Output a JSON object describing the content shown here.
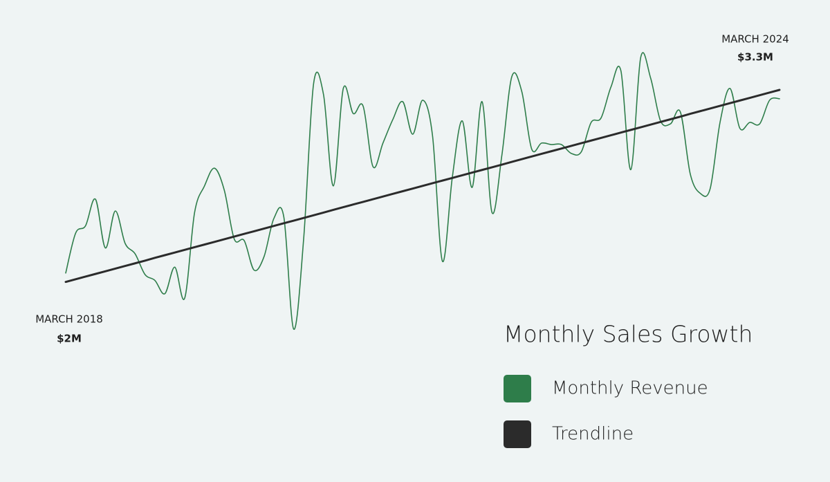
{
  "chart_data": {
    "type": "line",
    "title": "Monthly Sales Growth",
    "categories": [
      "MARCH 2018",
      null,
      null,
      null,
      null,
      null,
      null,
      null,
      null,
      null,
      null,
      null,
      null,
      null,
      null,
      null,
      null,
      null,
      null,
      null,
      null,
      null,
      null,
      null,
      null,
      null,
      null,
      null,
      null,
      null,
      null,
      null,
      null,
      null,
      null,
      null,
      null,
      null,
      null,
      null,
      null,
      null,
      null,
      null,
      null,
      null,
      null,
      null,
      null,
      null,
      null,
      null,
      null,
      null,
      null,
      null,
      null,
      null,
      null,
      null,
      null,
      null,
      null,
      null,
      null,
      null,
      null,
      null,
      null,
      null,
      null,
      null,
      "MARCH 2024"
    ],
    "series": [
      {
        "name": "Monthly Revenue",
        "color": "#2e7d4a",
        "values": [
          2.06,
          2.33,
          2.38,
          2.56,
          2.23,
          2.48,
          2.26,
          2.19,
          2.05,
          2.01,
          1.92,
          2.1,
          1.89,
          2.47,
          2.65,
          2.77,
          2.62,
          2.29,
          2.28,
          2.08,
          2.17,
          2.43,
          2.44,
          1.68,
          2.29,
          3.34,
          3.27,
          2.65,
          3.31,
          3.14,
          3.19,
          2.78,
          2.94,
          3.1,
          3.22,
          3.0,
          3.23,
          2.99,
          2.14,
          2.71,
          3.09,
          2.64,
          3.22,
          2.47,
          2.86,
          3.39,
          3.29,
          2.9,
          2.94,
          2.93,
          2.93,
          2.87,
          2.88,
          3.08,
          3.11,
          3.32,
          3.43,
          2.76,
          3.52,
          3.38,
          3.09,
          3.07,
          3.15,
          2.73,
          2.6,
          2.63,
          3.08,
          3.31,
          3.04,
          3.08,
          3.07,
          3.23,
          3.24
        ]
      },
      {
        "name": "Trendline",
        "color": "#2b2b2b",
        "values": [
          2.0,
          2.018,
          2.036,
          2.054,
          2.072,
          2.09,
          2.108,
          2.126,
          2.144,
          2.163,
          2.181,
          2.199,
          2.217,
          2.235,
          2.253,
          2.271,
          2.289,
          2.307,
          2.325,
          2.343,
          2.361,
          2.379,
          2.397,
          2.415,
          2.433,
          2.451,
          2.469,
          2.488,
          2.506,
          2.524,
          2.542,
          2.56,
          2.578,
          2.596,
          2.614,
          2.632,
          2.65,
          2.668,
          2.686,
          2.704,
          2.722,
          2.74,
          2.758,
          2.776,
          2.794,
          2.813,
          2.831,
          2.849,
          2.867,
          2.885,
          2.903,
          2.921,
          2.939,
          2.957,
          2.975,
          2.993,
          3.011,
          3.029,
          3.047,
          3.065,
          3.083,
          3.101,
          3.119,
          3.138,
          3.156,
          3.174,
          3.192,
          3.21,
          3.228,
          3.246,
          3.264,
          3.282,
          3.3
        ],
        "value_labels": [
          "$2M",
          null,
          null,
          null,
          null,
          null,
          null,
          null,
          null,
          null,
          null,
          null,
          null,
          null,
          null,
          null,
          null,
          null,
          null,
          null,
          null,
          null,
          null,
          null,
          null,
          null,
          null,
          null,
          null,
          null,
          null,
          null,
          null,
          null,
          null,
          null,
          null,
          null,
          null,
          null,
          null,
          null,
          null,
          null,
          null,
          null,
          null,
          null,
          null,
          null,
          null,
          null,
          null,
          null,
          null,
          null,
          null,
          null,
          null,
          null,
          null,
          null,
          null,
          null,
          null,
          null,
          null,
          null,
          null,
          null,
          null,
          null,
          "$3.3M"
        ]
      }
    ]
  }
}
